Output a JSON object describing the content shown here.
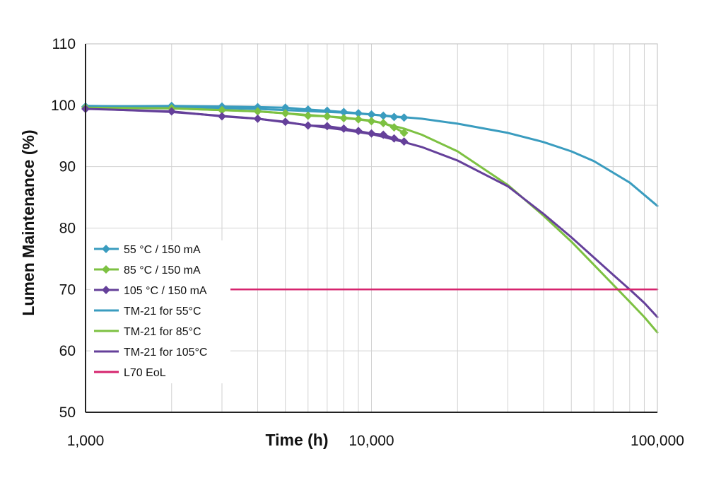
{
  "chart_data": {
    "type": "line",
    "title": "",
    "xlabel": "Time (h)",
    "ylabel": "Lumen Maintenance (%)",
    "x_scale": "log",
    "xlim": [
      1000,
      100000
    ],
    "ylim": [
      50,
      110
    ],
    "x_ticks": [
      1000,
      10000,
      100000
    ],
    "x_tick_labels": [
      "1,000",
      "10,000",
      "100,000"
    ],
    "y_ticks": [
      50,
      60,
      70,
      80,
      90,
      100,
      110
    ],
    "y_tick_labels": [
      "50",
      "60",
      "70",
      "80",
      "90",
      "100",
      "110"
    ],
    "grid": true,
    "legend_position": "left-middle",
    "series": [
      {
        "name": "55 °C / 150 mA",
        "kind": "measured",
        "color": "#3a9cbf",
        "marker": "diamond",
        "x": [
          1000,
          2000,
          3000,
          4000,
          5000,
          6000,
          7000,
          8000,
          9000,
          10000,
          11000,
          12000,
          13000
        ],
        "y": [
          99.8,
          99.9,
          99.8,
          99.7,
          99.6,
          99.3,
          99.1,
          98.9,
          98.7,
          98.5,
          98.3,
          98.1,
          98.0
        ]
      },
      {
        "name": "85 °C / 150 mA",
        "kind": "measured",
        "color": "#7dc142",
        "marker": "diamond",
        "x": [
          1000,
          2000,
          3000,
          4000,
          5000,
          6000,
          7000,
          8000,
          9000,
          10000,
          11000,
          12000,
          13000
        ],
        "y": [
          99.6,
          99.5,
          99.2,
          99.0,
          98.7,
          98.3,
          98.2,
          97.9,
          97.7,
          97.4,
          97.1,
          96.4,
          95.5
        ]
      },
      {
        "name": "105 °C / 150 mA",
        "kind": "measured",
        "color": "#65409a",
        "marker": "diamond",
        "x": [
          1000,
          2000,
          3000,
          4000,
          5000,
          6000,
          7000,
          8000,
          9000,
          10000,
          11000,
          12000,
          13000
        ],
        "y": [
          99.4,
          99.0,
          98.2,
          97.8,
          97.3,
          96.7,
          96.6,
          96.2,
          95.8,
          95.4,
          95.2,
          94.6,
          94.1
        ]
      },
      {
        "name": "TM-21 for 55°C",
        "kind": "projection",
        "color": "#3a9cbf",
        "x": [
          1000,
          2000,
          4000,
          8000,
          10000,
          15000,
          20000,
          30000,
          40000,
          50000,
          60000,
          80000,
          100000
        ],
        "y": [
          99.9,
          99.7,
          99.4,
          98.8,
          98.5,
          97.8,
          97.0,
          95.5,
          94.0,
          92.5,
          90.9,
          87.4,
          83.6
        ]
      },
      {
        "name": "TM-21 for 85°C",
        "kind": "projection",
        "color": "#7dc142",
        "x": [
          1000,
          2000,
          4000,
          8000,
          10000,
          13000,
          15000,
          20000,
          30000,
          40000,
          50000,
          60000,
          70000,
          80000,
          90000,
          100000
        ],
        "y": [
          99.8,
          99.5,
          99.0,
          98.0,
          97.5,
          96.2,
          95.2,
          92.5,
          87.0,
          82.0,
          77.8,
          74.0,
          70.8,
          68.0,
          65.5,
          63.0
        ]
      },
      {
        "name": "TM-21 for 105°C",
        "kind": "projection",
        "color": "#65409a",
        "x": [
          1000,
          2000,
          4000,
          8000,
          10000,
          13000,
          15000,
          20000,
          30000,
          40000,
          50000,
          60000,
          70000,
          80000,
          90000,
          100000
        ],
        "y": [
          99.5,
          98.9,
          97.8,
          96.0,
          95.3,
          94.0,
          93.2,
          91.0,
          86.8,
          82.3,
          78.5,
          75.2,
          72.4,
          70.0,
          67.8,
          65.5
        ]
      },
      {
        "name": "L70 EoL",
        "kind": "threshold",
        "color": "#d6246e",
        "x": [
          3000,
          100000
        ],
        "y": [
          70,
          70
        ]
      }
    ]
  }
}
